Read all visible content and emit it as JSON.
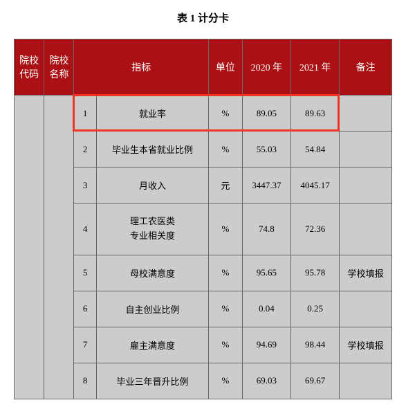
{
  "title": "表 1  计分卡",
  "header": {
    "col_code": "院校代码",
    "col_name": "院校名称",
    "col_indicator": "指标",
    "col_unit": "单位",
    "col_year1": "2020 年",
    "col_year2": "2021 年",
    "col_remark": "备注"
  },
  "rows": [
    {
      "idx": "1",
      "indicator": "就业率",
      "unit": "%",
      "y1": "89.05",
      "y2": "89.63",
      "remark": "",
      "highlight": true
    },
    {
      "idx": "2",
      "indicator": "毕业生本省就业比例",
      "unit": "%",
      "y1": "55.03",
      "y2": "54.84",
      "remark": ""
    },
    {
      "idx": "3",
      "indicator": "月收入",
      "unit": "元",
      "y1": "3447.37",
      "y2": "4045.17",
      "remark": ""
    },
    {
      "idx": "4",
      "indicator": "理工农医类\n专业相关度",
      "unit": "%",
      "y1": "74.8",
      "y2": "72.36",
      "remark": ""
    },
    {
      "idx": "5",
      "indicator": "母校满意度",
      "unit": "%",
      "y1": "95.65",
      "y2": "95.78",
      "remark": "学校填报"
    },
    {
      "idx": "6",
      "indicator": "自主创业比例",
      "unit": "%",
      "y1": "0.04",
      "y2": "0.25",
      "remark": ""
    },
    {
      "idx": "7",
      "indicator": "雇主满意度",
      "unit": "%",
      "y1": "94.69",
      "y2": "98.44",
      "remark": "学校填报"
    },
    {
      "idx": "8",
      "indicator": "毕业三年晋升比例",
      "unit": "%",
      "y1": "69.03",
      "y2": "69.67",
      "remark": ""
    }
  ],
  "colors": {
    "header_bg": "#ab1014",
    "header_text": "#ffffff",
    "cell_bg": "#cccccc",
    "cell_text": "#000000",
    "border": "#666666",
    "highlight": "#ee3224",
    "page_bg": "#ffffff"
  }
}
